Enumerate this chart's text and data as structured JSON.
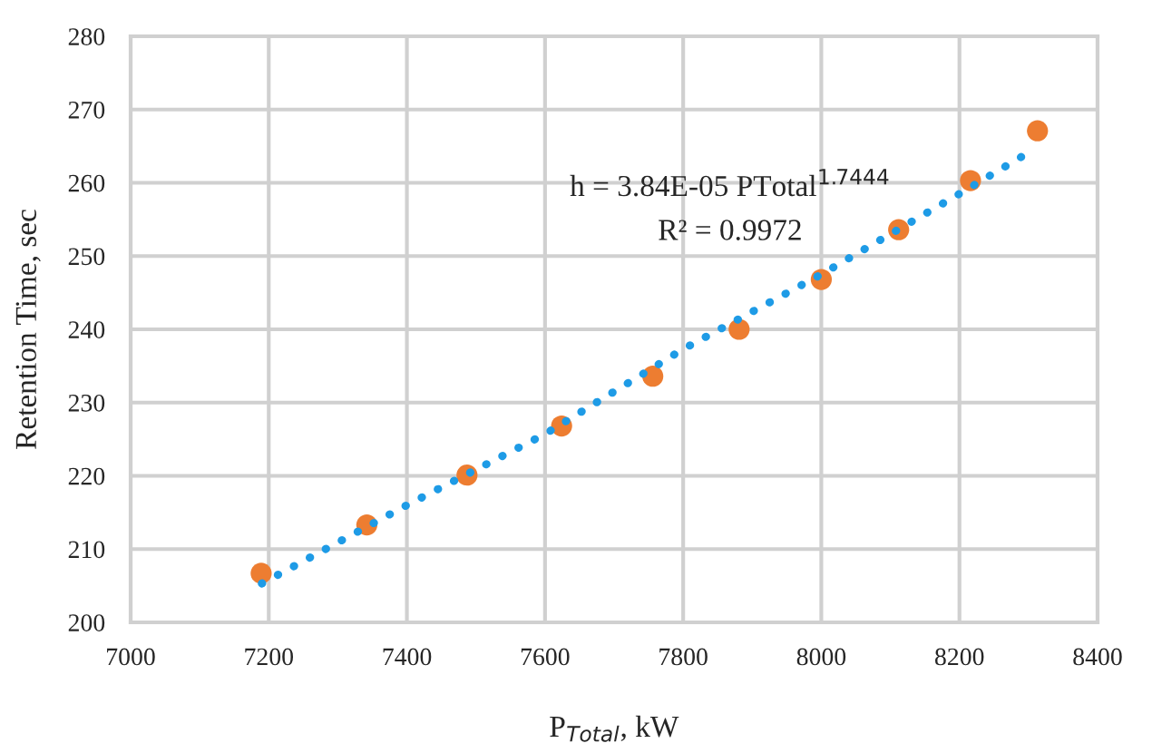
{
  "chart_data": {
    "type": "scatter",
    "xlabel": "P$_{Total}$, kW",
    "ylabel": "Retention Time, sec",
    "xlim": [
      7000,
      8400
    ],
    "xticks": [
      7000,
      7200,
      7400,
      7600,
      7800,
      8000,
      8200,
      8400
    ],
    "ylim": [
      200,
      280
    ],
    "yticks": [
      200,
      210,
      220,
      230,
      240,
      250,
      260,
      270,
      280
    ],
    "grid": true,
    "legend": false,
    "annotations": [
      "h = 3.84E-05 PTotal$^{1.7444}$",
      "R² = 0.9972"
    ],
    "series": [
      {
        "marker": "circle",
        "color": "#ed7d31",
        "x": [
          7189,
          7342,
          7487,
          7624,
          7756,
          7881,
          8000,
          8112,
          8216,
          8313
        ],
        "values": [
          206.7,
          213.3,
          220.1,
          226.8,
          233.6,
          240.0,
          246.8,
          253.6,
          260.3,
          267.1
        ]
      },
      {
        "type": "line",
        "line_style": "dotted",
        "color": "#1e9be6",
        "x": [
          7190,
          7400,
          7600,
          7800,
          8000,
          8200,
          8305
        ],
        "values": [
          205.3,
          216.0,
          225.7,
          237.3,
          247.5,
          258.5,
          264.4
        ]
      }
    ]
  }
}
